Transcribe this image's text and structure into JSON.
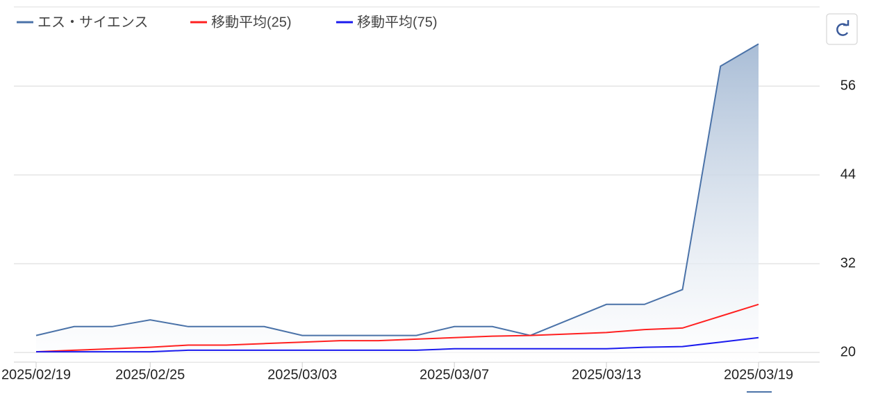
{
  "chart_data": {
    "type": "line",
    "categories": [
      "2025/02/19",
      null,
      null,
      "2025/02/25",
      null,
      null,
      null,
      "2025/03/03",
      null,
      null,
      null,
      "2025/03/07",
      null,
      null,
      null,
      "2025/03/13",
      null,
      null,
      null,
      "2025/03/19"
    ],
    "series": [
      {
        "name": "エス・サイエンス",
        "color": "#4a72a8",
        "area": true,
        "values": [
          22.3,
          23.5,
          23.5,
          24.4,
          23.5,
          23.5,
          23.5,
          22.3,
          22.3,
          22.3,
          22.3,
          23.5,
          23.5,
          22.3,
          24.4,
          26.5,
          26.5,
          28.5,
          58.7,
          61.7
        ]
      },
      {
        "name": "移動平均(25)",
        "color": "#ff2020",
        "values": [
          20.1,
          20.3,
          20.5,
          20.7,
          21.0,
          21.0,
          21.2,
          21.4,
          21.6,
          21.6,
          21.8,
          22.0,
          22.2,
          22.3,
          22.5,
          22.7,
          23.1,
          23.3,
          24.9,
          26.5
        ]
      },
      {
        "name": "移動平均(75)",
        "color": "#1a1aee",
        "values": [
          20.1,
          20.1,
          20.1,
          20.1,
          20.3,
          20.3,
          20.3,
          20.3,
          20.3,
          20.3,
          20.3,
          20.5,
          20.5,
          20.5,
          20.5,
          20.5,
          20.7,
          20.8,
          21.4,
          22.0
        ]
      }
    ],
    "ylim": [
      18.7,
      66.7
    ],
    "yticks": [
      20,
      32,
      44,
      56
    ],
    "grid": true,
    "legend": "top-left"
  }
}
